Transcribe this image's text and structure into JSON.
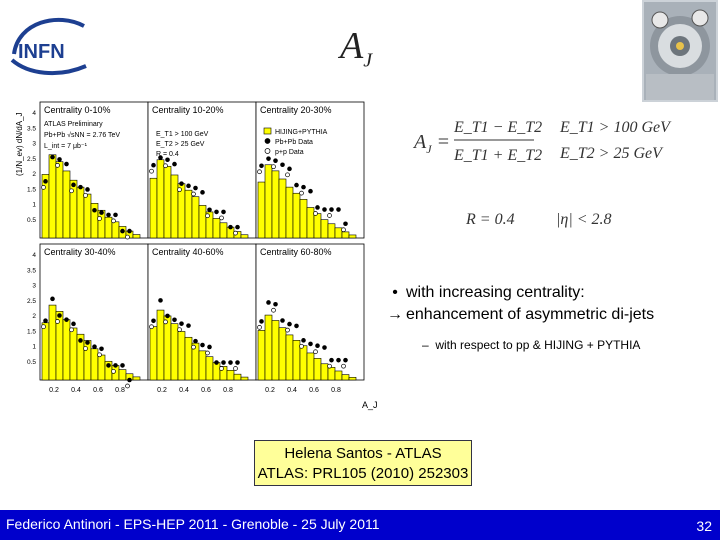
{
  "header": {
    "logo_text": "INFN",
    "title_main": "A",
    "title_sub": "J"
  },
  "plot": {
    "y_axis_label": "(1/N_ev) dN/dA_J",
    "x_axis_label": "A_J",
    "x_ticks": [
      "0.2",
      "0.4",
      "0.6",
      "0.8"
    ],
    "y_ticks": [
      "4",
      "3.5",
      "3",
      "2.5",
      "2",
      "1.5",
      "1",
      "0.5"
    ],
    "panels": [
      {
        "title": "Centrality 0-10%"
      },
      {
        "title": "Centrality 10-20%"
      },
      {
        "title": "Centrality 20-30%"
      },
      {
        "title": "Centrality 30-40%"
      },
      {
        "title": "Centrality 40-60%"
      },
      {
        "title": "Centrality 60-80%"
      }
    ],
    "panel1_text": [
      "ATLAS Preliminary",
      "Pb+Pb √sNN = 2.76 TeV",
      "L_int = 7 μb⁻¹"
    ],
    "panel2_text": [
      "E_T1 > 100 GeV",
      "E_T2 > 25 GeV",
      "R = 0.4"
    ],
    "legend": [
      "HIJING+PYTHIA",
      "Pb+Pb Data",
      "p+p Data"
    ]
  },
  "formula": {
    "aj_lhs": "A",
    "aj_sub": "J",
    "num": "E_T1 − E_T2",
    "den": "E_T1 + E_T2",
    "cond1": "E_T1 > 100 GeV",
    "cond2": "E_T2 > 25 GeV",
    "r_val": "R = 0.4",
    "eta": "|η| < 2.8"
  },
  "bullets": {
    "b1_line1": "with increasing centrality:",
    "b1_line2": "enhancement of asymmetric di-jets",
    "b2": "with respect to pp & HIJING + PYTHIA"
  },
  "reference": {
    "line1": "Helena Santos - ATLAS",
    "line2": "ATLAS: PRL105 (2010) 252303"
  },
  "footer": {
    "left": "Federico Antinori - EPS-HEP 2011 - Grenoble - 25 July 2011",
    "page": "32"
  },
  "colors": {
    "footer_bg": "#0000cc",
    "hist_fill": "#ffff00",
    "ref_bg": "#ffff99",
    "logo_blue": "#1d3f91"
  }
}
